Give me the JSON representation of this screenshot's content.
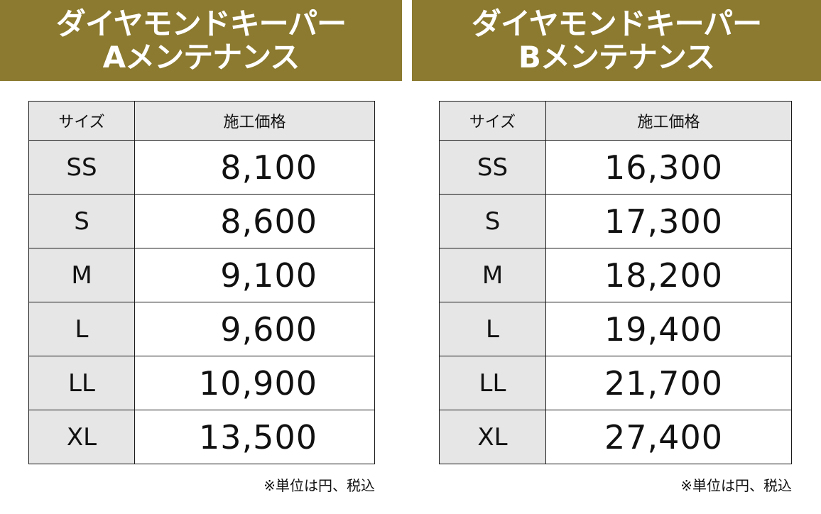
{
  "panels": [
    {
      "title_line1": "ダイヤモンドキーパー",
      "title_line2": "Aメンテナンス",
      "col_size": "サイズ",
      "col_price": "施工価格",
      "rows": [
        {
          "size": "SS",
          "price": "8,100"
        },
        {
          "size": "S",
          "price": "8,600"
        },
        {
          "size": "M",
          "price": "9,100"
        },
        {
          "size": "L",
          "price": "9,600"
        },
        {
          "size": "LL",
          "price": "10,900"
        },
        {
          "size": "XL",
          "price": "13,500"
        }
      ],
      "note": "※単位は円、税込"
    },
    {
      "title_line1": "ダイヤモンドキーパー",
      "title_line2": "Bメンテナンス",
      "col_size": "サイズ",
      "col_price": "施工価格",
      "rows": [
        {
          "size": "SS",
          "price": "16,300"
        },
        {
          "size": "S",
          "price": "17,300"
        },
        {
          "size": "M",
          "price": "18,200"
        },
        {
          "size": "L",
          "price": "19,400"
        },
        {
          "size": "LL",
          "price": "21,700"
        },
        {
          "size": "XL",
          "price": "27,400"
        }
      ],
      "note": "※単位は円、税込"
    }
  ],
  "colors": {
    "header_bg": "#8b7a2f",
    "cell_gray": "#e6e6e6"
  }
}
